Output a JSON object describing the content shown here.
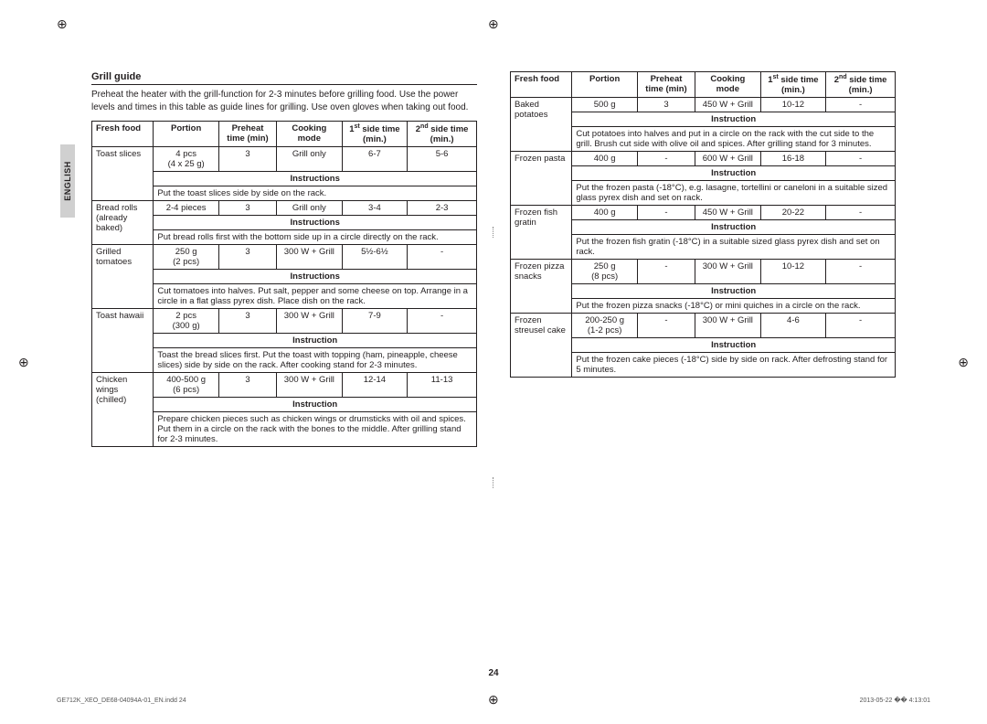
{
  "side_label": "ENGLISH",
  "title": "Grill guide",
  "intro": "Preheat the heater with the grill-function for 2-3 minutes before grilling food. Use the power levels and times in this table as guide lines for grilling. Use oven gloves when taking out food.",
  "headers": {
    "food": "Fresh food",
    "portion": "Portion",
    "preheat": "Preheat time (min)",
    "cooking": "Cooking mode",
    "side1_pre": "1",
    "side1_sup": "st",
    "side1_post": " side time (min.)",
    "side2_pre": "2",
    "side2_sup": "nd",
    "side2_post": " side time (min.)"
  },
  "instr_label": "Instructions",
  "instr_label_sing": "Instruction",
  "left": [
    {
      "food": "Toast slices",
      "portion": "4 pcs\n(4 x 25 g)",
      "preheat": "3",
      "cooking": "Grill only",
      "side1": "6-7",
      "side2": "5-6",
      "ihdr": "Instructions",
      "instr": "Put the toast slices side by side on the rack."
    },
    {
      "food": "Bread rolls (already baked)",
      "portion": "2-4 pieces",
      "preheat": "3",
      "cooking": "Grill only",
      "side1": "3-4",
      "side2": "2-3",
      "ihdr": "Instructions",
      "instr": "Put bread rolls first with the bottom side up in a circle directly on the rack."
    },
    {
      "food": "Grilled tomatoes",
      "portion": "250 g\n(2 pcs)",
      "preheat": "3",
      "cooking": "300 W + Grill",
      "side1": "5½-6½",
      "side2": "-",
      "ihdr": "Instructions",
      "instr": "Cut tomatoes into halves. Put salt, pepper and some cheese on top. Arrange in a circle in a flat glass pyrex dish. Place dish on the rack."
    },
    {
      "food": "Toast hawaii",
      "portion": "2 pcs\n(300 g)",
      "preheat": "3",
      "cooking": "300 W + Grill",
      "side1": "7-9",
      "side2": "-",
      "ihdr": "Instruction",
      "instr": "Toast the bread slices first. Put the toast with topping (ham, pineapple, cheese slices) side by side on the rack. After cooking stand for 2-3 minutes."
    },
    {
      "food": "Chicken wings (chilled)",
      "portion": "400-500 g\n(6 pcs)",
      "preheat": "3",
      "cooking": "300 W + Grill",
      "side1": "12-14",
      "side2": "11-13",
      "ihdr": "Instruction",
      "instr": "Prepare chicken pieces such as chicken wings or drumsticks with oil and spices. Put them in a circle on the rack with the bones to the middle. After grilling stand for 2-3 minutes."
    }
  ],
  "right": [
    {
      "food": "Baked potatoes",
      "portion": "500 g",
      "preheat": "3",
      "cooking": "450 W + Grill",
      "side1": "10-12",
      "side2": "-",
      "ihdr": "Instruction",
      "instr": "Cut potatoes into halves and put in a circle on the rack with the cut side to the grill. Brush cut side with olive oil and spices. After grilling stand for 3 minutes."
    },
    {
      "food": "Frozen pasta",
      "portion": "400 g",
      "preheat": "-",
      "cooking": "600 W + Grill",
      "side1": "16-18",
      "side2": "-",
      "ihdr": "Instruction",
      "instr": "Put the frozen pasta (-18°C), e.g. lasagne, tortellini or caneloni in a suitable sized glass pyrex dish and set on rack."
    },
    {
      "food": "Frozen fish gratin",
      "portion": "400 g",
      "preheat": "-",
      "cooking": "450 W + Grill",
      "side1": "20-22",
      "side2": "-",
      "ihdr": "Instruction",
      "instr": "Put the frozen fish gratin (-18°C) in a suitable sized glass pyrex dish and set on rack."
    },
    {
      "food": "Frozen pizza snacks",
      "portion": "250 g\n(8 pcs)",
      "preheat": "-",
      "cooking": "300 W + Grill",
      "side1": "10-12",
      "side2": "-",
      "ihdr": "Instruction",
      "instr": "Put the frozen pizza snacks (-18°C) or mini quiches in a circle on the rack."
    },
    {
      "food": "Frozen streusel cake",
      "portion": "200-250 g\n(1-2 pcs)",
      "preheat": "-",
      "cooking": "300 W + Grill",
      "side1": "4-6",
      "side2": "-",
      "ihdr": "Instruction",
      "instr": "Put the frozen cake pieces (-18°C) side by side on rack. After defrosting stand for 5 minutes."
    }
  ],
  "page_num": "24",
  "footer_left": "GE712K_XEO_DE68-04094A-01_EN.indd   24",
  "footer_right": "2013-05-22   �� 4:13:01"
}
